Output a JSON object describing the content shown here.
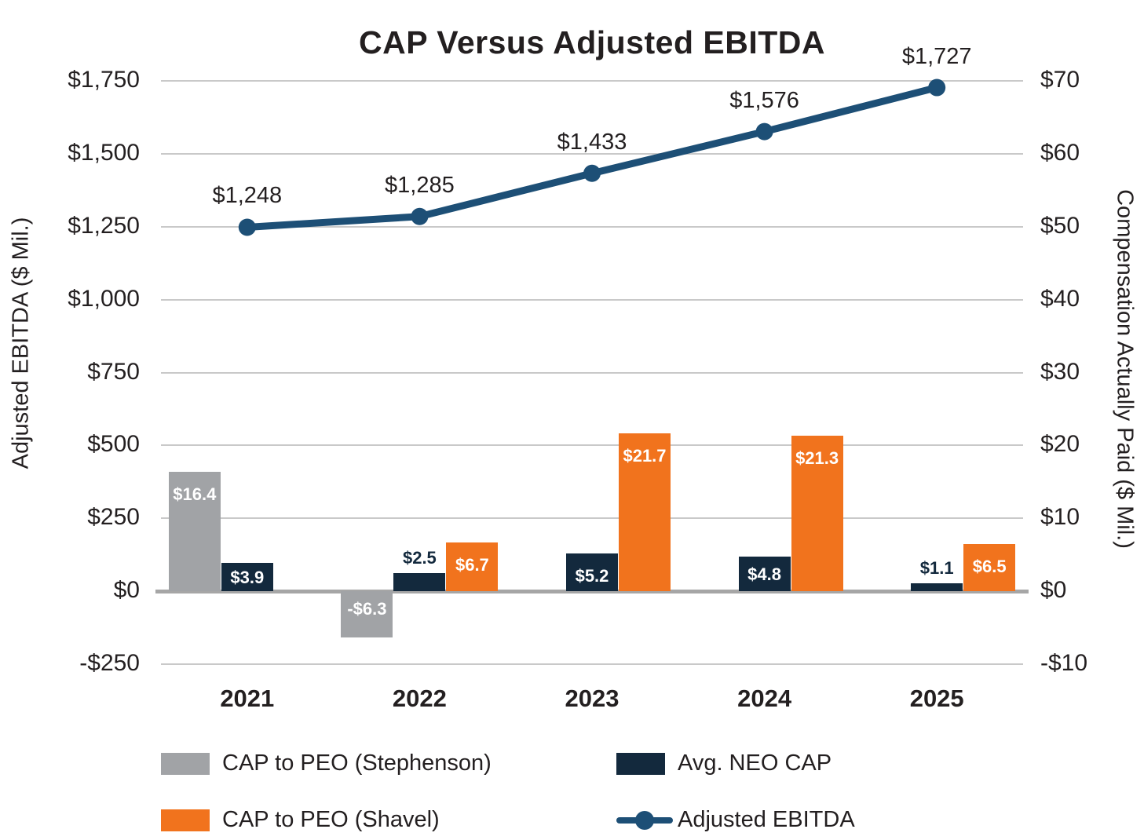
{
  "chart_data": {
    "type": "combo-bar-line",
    "title": "CAP Versus Adjusted EBITDA",
    "categories": [
      "2021",
      "2022",
      "2023",
      "2024",
      "2025"
    ],
    "left_axis": {
      "label": "Adjusted EBITDA ($ Mil.)",
      "min": -250,
      "max": 1750,
      "step": 250,
      "tick_labels": [
        "$1,750",
        "$1,500",
        "$1,250",
        "$1,000",
        "$750",
        "$500",
        "$250",
        "$0",
        "-$250"
      ]
    },
    "right_axis": {
      "label": "Compensation Actually Paid ($ Mil.)",
      "min": -10,
      "max": 70,
      "step": 10,
      "tick_labels": [
        "$70",
        "$60",
        "$50",
        "$40",
        "$30",
        "$20",
        "$10",
        "$0",
        "-$10"
      ]
    },
    "bar_series": [
      {
        "name": "CAP to PEO (Stephenson)",
        "color": "#a1a3a6",
        "axis": "right",
        "slot": -1,
        "values": [
          16.4,
          -6.3,
          null,
          null,
          null
        ],
        "labels": [
          "$16.4",
          "-$6.3",
          "",
          "",
          ""
        ]
      },
      {
        "name": "Avg. NEO CAP",
        "color": "#13293d",
        "axis": "right",
        "slot": 0,
        "values": [
          3.9,
          2.5,
          5.2,
          4.8,
          1.1
        ],
        "labels": [
          "$3.9",
          "$2.5",
          "$5.2",
          "$4.8",
          "$1.1"
        ]
      },
      {
        "name": "CAP to PEO (Shavel)",
        "color": "#f1731d",
        "axis": "right",
        "slot": 1,
        "values": [
          null,
          6.7,
          21.7,
          21.3,
          6.5
        ],
        "labels": [
          "",
          "$6.7",
          "$21.7",
          "$21.3",
          "$6.5"
        ]
      }
    ],
    "line_series": {
      "name": "Adjusted EBITDA",
      "color": "#1d4f76",
      "axis": "left",
      "values": [
        1248,
        1285,
        1433,
        1576,
        1727
      ],
      "labels": [
        "$1,248",
        "$1,285",
        "$1,433",
        "$1,576",
        "$1,727"
      ]
    },
    "legend": [
      {
        "type": "swatch",
        "color": "#a1a3a6",
        "label": "CAP to PEO (Stephenson)",
        "col": 0,
        "row": 0
      },
      {
        "type": "swatch",
        "color": "#13293d",
        "label": "Avg. NEO CAP",
        "col": 1,
        "row": 0
      },
      {
        "type": "swatch",
        "color": "#f1731d",
        "label": "CAP to PEO (Shavel)",
        "col": 0,
        "row": 1
      },
      {
        "type": "line",
        "color": "#1d4f76",
        "label": "Adjusted EBITDA",
        "col": 1,
        "row": 1
      }
    ],
    "grid_color": "#c9c9c9",
    "zero_line_color": "#a6a6a6",
    "text_color": "#231f20"
  }
}
